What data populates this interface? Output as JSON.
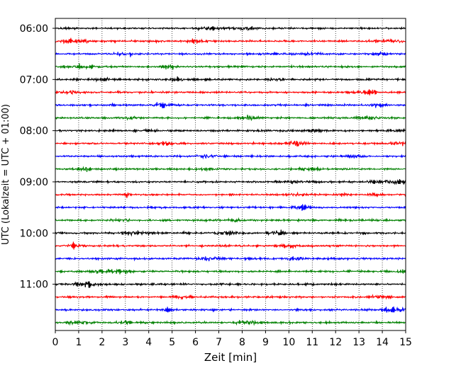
{
  "chart_data": {
    "type": "line",
    "title": "",
    "xlabel": "Zeit  [min]",
    "ylabel": "UTC (Lokalzeit = UTC + 01:00)",
    "xlim": [
      0,
      15
    ],
    "x_ticks": [
      "0",
      "1",
      "2",
      "3",
      "4",
      "5",
      "6",
      "7",
      "8",
      "9",
      "10",
      "11",
      "12",
      "13",
      "14",
      "15"
    ],
    "y_ticks": [
      "06:00",
      "07:00",
      "08:00",
      "09:00",
      "10:00",
      "11:00"
    ],
    "trace_start_times": [
      "06:00",
      "06:15",
      "06:30",
      "06:45",
      "07:00",
      "07:15",
      "07:30",
      "07:45",
      "08:00",
      "08:15",
      "08:30",
      "08:45",
      "09:00",
      "09:15",
      "09:30",
      "09:45",
      "10:00",
      "10:15",
      "10:30",
      "10:45",
      "11:00",
      "11:15",
      "11:30",
      "11:45"
    ],
    "trace_colors": [
      "#000000",
      "#ff0000",
      "#0000ff",
      "#008000"
    ],
    "grid_x": true,
    "grid_style": "dotted",
    "legend": "none"
  }
}
